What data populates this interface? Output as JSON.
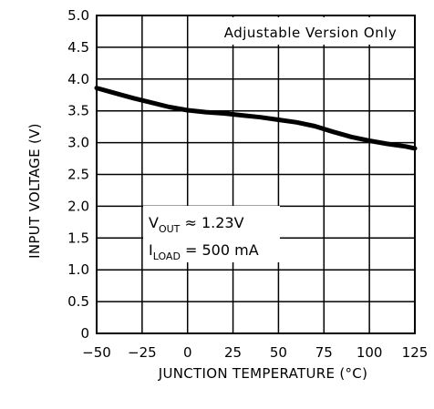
{
  "chart_data": {
    "type": "line",
    "title": "",
    "xlabel": "JUNCTION TEMPERATURE (°C)",
    "ylabel": "INPUT VOLTAGE (V)",
    "xlim": [
      -50,
      125
    ],
    "ylim": [
      0,
      5.0
    ],
    "grid": true,
    "x_ticks": [
      "-50",
      "-25",
      "0",
      "25",
      "50",
      "75",
      "100",
      "125"
    ],
    "y_ticks": [
      "0",
      "0.5",
      "1.0",
      "1.5",
      "2.0",
      "2.5",
      "3.0",
      "3.5",
      "4.0",
      "4.5",
      "5.0"
    ],
    "series": [
      {
        "x": [
          -50,
          -40,
          -30,
          -20,
          -10,
          0,
          10,
          20,
          30,
          40,
          50,
          60,
          70,
          80,
          90,
          100,
          110,
          120,
          125
        ],
        "values": [
          3.86,
          3.78,
          3.7,
          3.63,
          3.56,
          3.51,
          3.48,
          3.46,
          3.43,
          3.4,
          3.36,
          3.32,
          3.26,
          3.17,
          3.09,
          3.03,
          2.98,
          2.94,
          2.91
        ]
      }
    ],
    "annotations": {
      "version_note": "Adjustable Version Only",
      "vout": {
        "main": "V",
        "sub": "OUT",
        "rest": " ≈ 1.23V"
      },
      "iload": {
        "main": "I",
        "sub": "LOAD",
        "rest": " = 500 mA"
      }
    },
    "colors": {
      "line": "#000000",
      "grid": "#000000",
      "background": "#ffffff"
    }
  }
}
